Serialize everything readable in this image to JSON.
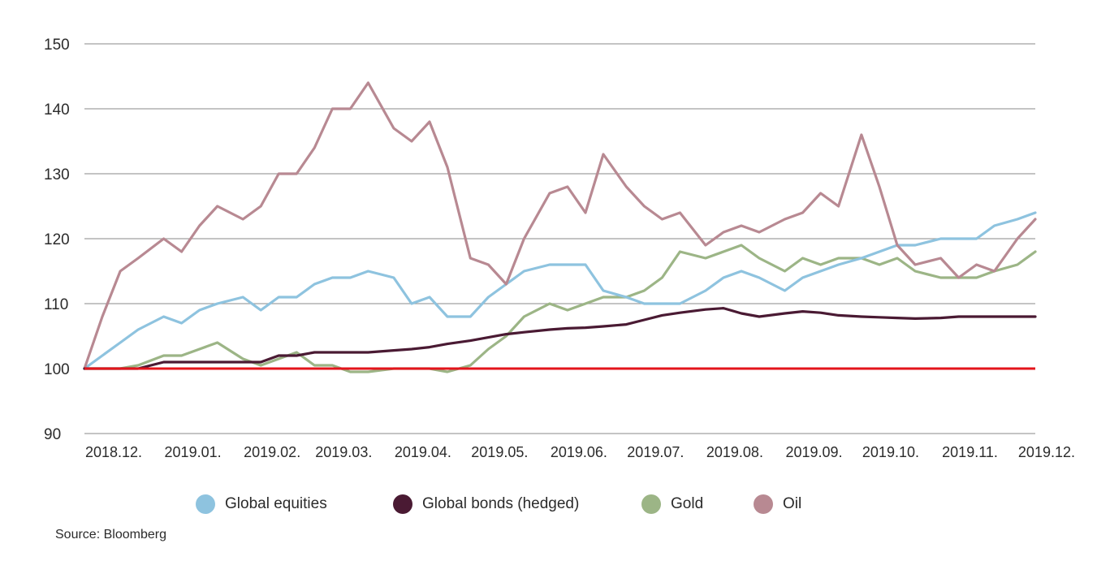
{
  "chart_data": {
    "type": "line",
    "title": "",
    "xlabel": "",
    "ylabel": "",
    "ylim": [
      90,
      150
    ],
    "yticks": [
      90,
      100,
      110,
      120,
      130,
      140,
      150
    ],
    "x_ticks": [
      "2018.12.",
      "2019.01.",
      "2019.02.",
      "2019.03.",
      "2019.04.",
      "2019.05.",
      "2019.06.",
      "2019.07.",
      "2019.08.",
      "2019.09.",
      "2019.10.",
      "2019.11.",
      "2019.12."
    ],
    "grid": true,
    "legend_position": "bottom",
    "baseline": {
      "value": 100,
      "color": "#e3141b"
    },
    "x": [
      "2018-12-01",
      "2018-12-08",
      "2018-12-15",
      "2018-12-22",
      "2019-01-01",
      "2019-01-08",
      "2019-01-15",
      "2019-01-22",
      "2019-02-01",
      "2019-02-08",
      "2019-02-15",
      "2019-02-22",
      "2019-03-01",
      "2019-03-08",
      "2019-03-15",
      "2019-03-22",
      "2019-04-01",
      "2019-04-08",
      "2019-04-15",
      "2019-04-22",
      "2019-05-01",
      "2019-05-08",
      "2019-05-15",
      "2019-05-22",
      "2019-06-01",
      "2019-06-08",
      "2019-06-15",
      "2019-06-22",
      "2019-07-01",
      "2019-07-08",
      "2019-07-15",
      "2019-07-22",
      "2019-08-01",
      "2019-08-08",
      "2019-08-15",
      "2019-08-22",
      "2019-09-01",
      "2019-09-08",
      "2019-09-15",
      "2019-09-22",
      "2019-10-01",
      "2019-10-08",
      "2019-10-15",
      "2019-10-22",
      "2019-11-01",
      "2019-11-08",
      "2019-11-15",
      "2019-11-22",
      "2019-12-01",
      "2019-12-08"
    ],
    "series": [
      {
        "name": "Global equities",
        "color": "#8ec3df",
        "values": [
          100,
          102,
          104,
          106,
          108,
          107,
          109,
          110,
          111,
          109,
          111,
          111,
          113,
          114,
          114,
          115,
          114,
          110,
          111,
          108,
          108,
          111,
          113,
          115,
          116,
          116,
          116,
          112,
          111,
          110,
          110,
          110,
          112,
          114,
          115,
          114,
          112,
          114,
          115,
          116,
          117,
          118,
          119,
          119,
          120,
          120,
          120,
          122,
          123,
          124
        ]
      },
      {
        "name": "Global bonds (hedged)",
        "color": "#4a1a33",
        "values": [
          100,
          100,
          100,
          100,
          101,
          101,
          101,
          101,
          101,
          101,
          102,
          102,
          102.5,
          102.5,
          102.5,
          102.5,
          102.8,
          103,
          103.3,
          103.8,
          104.3,
          104.8,
          105.3,
          105.6,
          106,
          106.2,
          106.3,
          106.5,
          106.8,
          107.5,
          108.2,
          108.6,
          109.1,
          109.3,
          108.5,
          108,
          108.5,
          108.8,
          108.6,
          108.2,
          108,
          107.9,
          107.8,
          107.7,
          107.8,
          108,
          108,
          108,
          108,
          108
        ]
      },
      {
        "name": "Gold",
        "color": "#9cb586",
        "values": [
          100,
          100,
          100,
          100.5,
          102,
          102,
          103,
          104,
          101.5,
          100.5,
          101.5,
          102.5,
          100.5,
          100.5,
          99.5,
          99.5,
          100,
          100,
          100,
          99.5,
          100.5,
          103,
          105,
          108,
          110,
          109,
          110,
          111,
          111,
          112,
          114,
          118,
          117,
          118,
          119,
          117,
          115,
          117,
          116,
          117,
          117,
          116,
          117,
          115,
          114,
          114,
          114,
          115,
          116,
          118
        ]
      },
      {
        "name": "Oil",
        "color": "#b88992",
        "values": [
          100,
          108,
          115,
          117,
          120,
          118,
          122,
          125,
          123,
          125,
          130,
          130,
          134,
          140,
          140,
          144,
          137,
          135,
          138,
          131,
          117,
          116,
          113,
          120,
          127,
          128,
          124,
          133,
          128,
          125,
          123,
          124,
          119,
          121,
          122,
          121,
          123,
          124,
          127,
          125,
          136,
          128,
          119,
          116,
          117,
          114,
          116,
          115,
          120,
          123
        ]
      }
    ]
  },
  "legend": [
    {
      "label": "Global equities",
      "color": "#8ec3df"
    },
    {
      "label": "Global bonds (hedged)",
      "color": "#4a1a33"
    },
    {
      "label": "Gold",
      "color": "#9cb586"
    },
    {
      "label": "Oil",
      "color": "#b88992"
    }
  ],
  "source": "Source: Bloomberg"
}
